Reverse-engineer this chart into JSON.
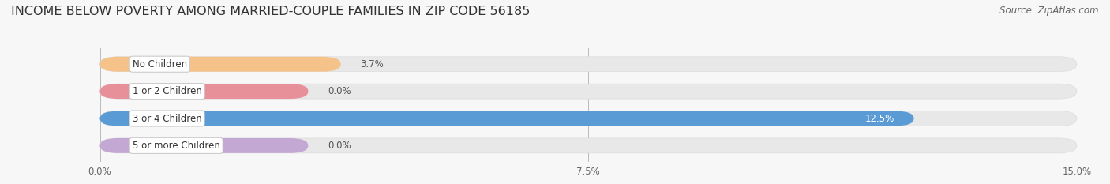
{
  "title": "INCOME BELOW POVERTY AMONG MARRIED-COUPLE FAMILIES IN ZIP CODE 56185",
  "source": "Source: ZipAtlas.com",
  "categories": [
    "No Children",
    "1 or 2 Children",
    "3 or 4 Children",
    "5 or more Children"
  ],
  "values": [
    3.7,
    0.0,
    12.5,
    0.0
  ],
  "bar_colors": [
    "#F5C28A",
    "#E8909A",
    "#5B9BD5",
    "#C4A8D4"
  ],
  "max_value": 15.0,
  "xticks": [
    0.0,
    7.5,
    15.0
  ],
  "xtick_labels": [
    "0.0%",
    "7.5%",
    "15.0%"
  ],
  "title_fontsize": 11.5,
  "source_fontsize": 8.5,
  "label_fontsize": 8.5,
  "value_fontsize": 8.5,
  "background_color": "#f7f7f7",
  "bar_bg_color": "#E8E8E8",
  "bar_bg_edge_color": "#DDDDDD",
  "bar_height": 0.55,
  "figure_width": 14.06,
  "figure_height": 2.33,
  "stub_values": [
    0.0,
    3.7,
    0.0,
    3.7
  ],
  "zero_stub": 3.7
}
